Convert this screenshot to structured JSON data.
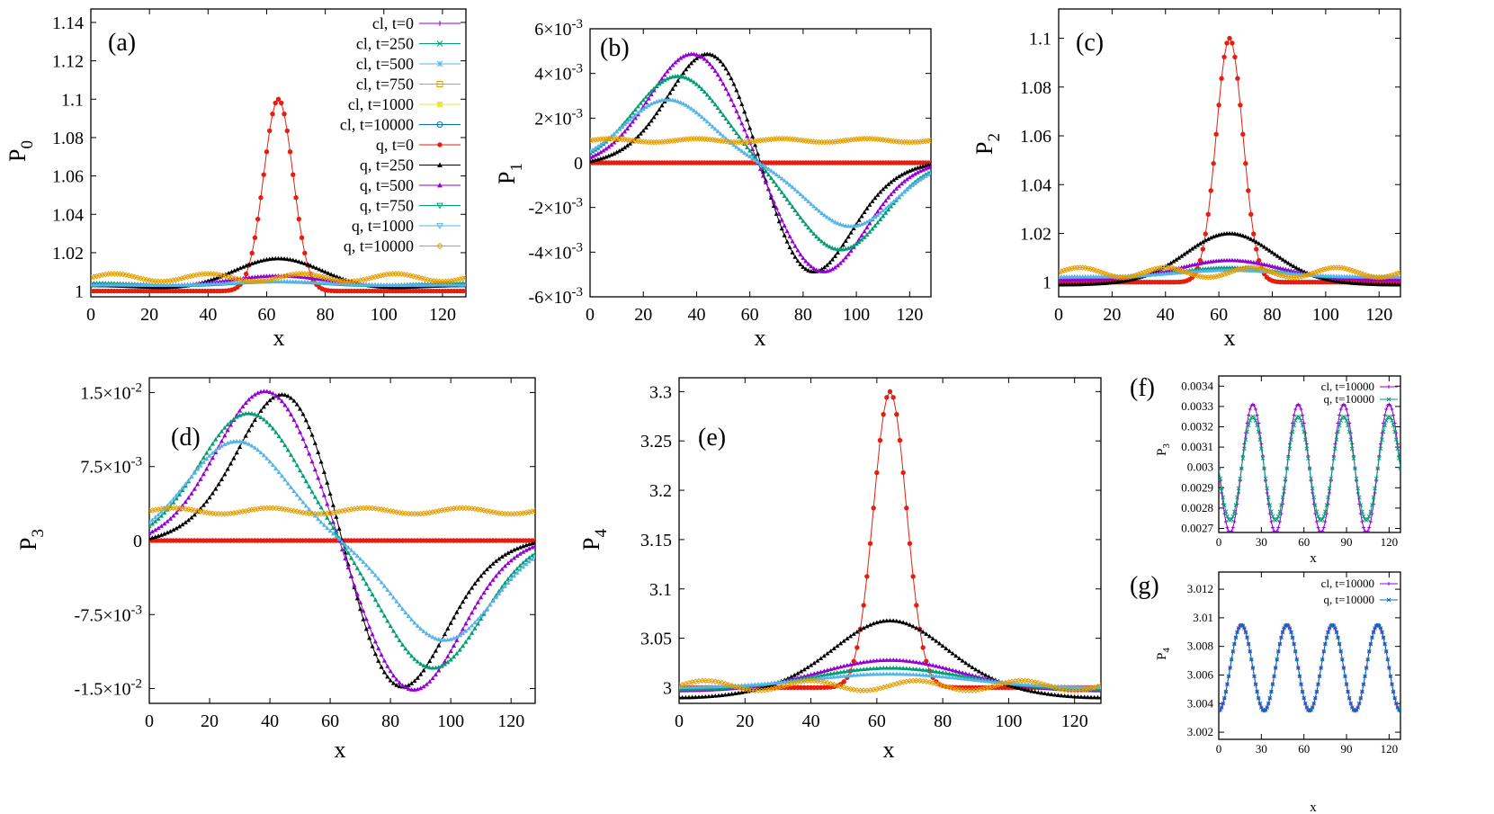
{
  "figure": {
    "colors": {
      "cl_t0": "#9400d3",
      "cl_t250": "#009e73",
      "cl_t500": "#56b4e9",
      "cl_t750": "#e69f00",
      "cl_t1000": "#f0e442",
      "cl_t10000": "#0072b2",
      "q_t0": "#e51e10",
      "q_t250": "#000000",
      "q_t500": "#9400d3",
      "q_t750": "#009e73",
      "q_t1000": "#56b4e9",
      "q_t10000": "#e69f00"
    }
  },
  "chart_data": [
    {
      "id": "a",
      "panel_label": "(a)",
      "type": "line",
      "xlabel": "x",
      "ylabel": "P",
      "ylabel_sub": "0",
      "xlim": [
        0,
        128
      ],
      "ylim": [
        0.997,
        1.147
      ],
      "xticks": [
        "0",
        "20",
        "40",
        "60",
        "80",
        "100",
        "120"
      ],
      "yticks": [
        {
          "v": 1,
          "t": "1"
        },
        {
          "v": 1.02,
          "t": "1.02"
        },
        {
          "v": 1.04,
          "t": "1.04"
        },
        {
          "v": 1.06,
          "t": "1.06"
        },
        {
          "v": 1.08,
          "t": "1.08"
        },
        {
          "v": 1.1,
          "t": "1.1"
        },
        {
          "v": 1.12,
          "t": "1.12"
        },
        {
          "v": 1.14,
          "t": "1.14"
        }
      ],
      "legend": [
        "cl, t=0",
        "cl, t=250",
        "cl, t=500",
        "cl, t=750",
        "cl, t=1000",
        "cl, t=10000",
        "q, t=0",
        "q, t=250",
        "q, t=500",
        "q, t=750",
        "q, t=1000",
        "q, t=10000"
      ],
      "legend_position": "top-right",
      "base": 1.0,
      "series": [
        {
          "name": "q, t=0",
          "kind": "gauss",
          "amp": 0.1,
          "width": 5,
          "color": "#e51e10",
          "marker": "dot"
        },
        {
          "name": "q, t=250",
          "kind": "gauss",
          "amp": 0.02,
          "width": 16,
          "offset": 0.003,
          "color": "#000000",
          "marker": "tri"
        },
        {
          "name": "q, t=500",
          "kind": "gauss",
          "amp": 0.012,
          "width": 20,
          "offset": 0.004,
          "color": "#9400d3",
          "marker": "tri"
        },
        {
          "name": "q, t=750",
          "kind": "gauss",
          "amp": 0.009,
          "width": 22,
          "offset": 0.004,
          "color": "#009e73",
          "marker": "tri"
        },
        {
          "name": "q, t=1000",
          "kind": "gauss",
          "amp": 0.008,
          "width": 24,
          "offset": 0.003,
          "color": "#56b4e9",
          "marker": "tri"
        },
        {
          "name": "q, t=10000",
          "kind": "wave",
          "mean": 1.007,
          "amp": 0.002,
          "period": 32,
          "color": "#e69f00",
          "marker": "dia"
        }
      ]
    },
    {
      "id": "b",
      "panel_label": "(b)",
      "type": "line",
      "xlabel": "x",
      "ylabel": "P",
      "ylabel_sub": "1",
      "xlim": [
        0,
        128
      ],
      "ylim": [
        -0.006,
        0.006
      ],
      "xticks": [
        "0",
        "20",
        "40",
        "60",
        "80",
        "100",
        "120"
      ],
      "yticks": [
        {
          "v": -0.006,
          "m": "-6",
          "e": "-3"
        },
        {
          "v": -0.004,
          "m": "-4",
          "e": "-3"
        },
        {
          "v": -0.002,
          "m": "-2",
          "e": "-3"
        },
        {
          "v": 0,
          "t": "0"
        },
        {
          "v": 0.002,
          "m": "2",
          "e": "-3"
        },
        {
          "v": 0.004,
          "m": "4",
          "e": "-3"
        },
        {
          "v": 0.006,
          "m": "6",
          "e": "-3"
        }
      ],
      "series": [
        {
          "name": "q, t=0",
          "kind": "flat",
          "value": 0,
          "color": "#e51e10",
          "marker": "dot"
        },
        {
          "name": "q, t=250",
          "kind": "antisym",
          "amp": 0.0051,
          "peak": 47,
          "trough": 81,
          "color": "#000000",
          "marker": "tri"
        },
        {
          "name": "q, t=500",
          "kind": "antisym",
          "amp": 0.0047,
          "peak": 39,
          "trough": 87,
          "color": "#9400d3",
          "marker": "tri"
        },
        {
          "name": "q, t=750",
          "kind": "antisym",
          "amp": 0.0037,
          "peak": 33,
          "trough": 94,
          "color": "#009e73",
          "marker": "tri"
        },
        {
          "name": "q, t=1000",
          "kind": "antisym",
          "amp": 0.0027,
          "peak": 29,
          "trough": 98,
          "color": "#56b4e9",
          "marker": "tri"
        },
        {
          "name": "q, t=10000",
          "kind": "wave",
          "mean": 0.001,
          "amp": 8e-05,
          "period": 32,
          "color": "#e69f00",
          "marker": "dia"
        }
      ]
    },
    {
      "id": "c",
      "panel_label": "(c)",
      "type": "line",
      "xlabel": "x",
      "ylabel": "P",
      "ylabel_sub": "2",
      "xlim": [
        0,
        128
      ],
      "ylim": [
        0.994,
        1.112
      ],
      "xticks": [
        "0",
        "20",
        "40",
        "60",
        "80",
        "100",
        "120"
      ],
      "yticks": [
        {
          "v": 1,
          "t": "1"
        },
        {
          "v": 1.02,
          "t": "1.02"
        },
        {
          "v": 1.04,
          "t": "1.04"
        },
        {
          "v": 1.06,
          "t": "1.06"
        },
        {
          "v": 1.08,
          "t": "1.08"
        },
        {
          "v": 1.1,
          "t": "1.1"
        }
      ],
      "base": 1.0,
      "series": [
        {
          "name": "q, t=0",
          "kind": "gauss",
          "amp": 0.1,
          "width": 5,
          "color": "#e51e10",
          "marker": "dot"
        },
        {
          "name": "q, t=250",
          "kind": "gauss",
          "amp": 0.019,
          "width": 16,
          "offset": -0.001,
          "color": "#000000",
          "marker": "tri"
        },
        {
          "name": "q, t=500",
          "kind": "gauss",
          "amp": 0.01,
          "width": 20,
          "offset": 0.001,
          "color": "#9400d3",
          "marker": "tri"
        },
        {
          "name": "q, t=750",
          "kind": "gauss",
          "amp": 0.008,
          "width": 22,
          "offset": 0.002,
          "color": "#009e73",
          "marker": "tri"
        },
        {
          "name": "q, t=1000",
          "kind": "gauss",
          "amp": 0.007,
          "width": 24,
          "offset": 0.002,
          "color": "#56b4e9",
          "marker": "tri"
        },
        {
          "name": "q, t=10000",
          "kind": "wave",
          "mean": 1.004,
          "amp": 0.002,
          "period": 32,
          "color": "#e69f00",
          "marker": "dia"
        }
      ]
    },
    {
      "id": "d",
      "panel_label": "(d)",
      "type": "line",
      "xlabel": "x",
      "ylabel": "P",
      "ylabel_sub": "3",
      "xlim": [
        0,
        128
      ],
      "ylim": [
        -0.0165,
        0.0165
      ],
      "xticks": [
        "0",
        "20",
        "40",
        "60",
        "80",
        "100",
        "120"
      ],
      "yticks": [
        {
          "v": -0.015,
          "m": "-1.5",
          "e": "-2"
        },
        {
          "v": -0.0075,
          "m": "-7.5",
          "e": "-3"
        },
        {
          "v": 0,
          "t": "0"
        },
        {
          "v": 0.0075,
          "m": "7.5",
          "e": "-3"
        },
        {
          "v": 0.015,
          "m": "1.5",
          "e": "-2"
        }
      ],
      "series": [
        {
          "name": "q, t=0",
          "kind": "flat",
          "value": 0,
          "color": "#e51e10",
          "marker": "dot"
        },
        {
          "name": "q, t=250",
          "kind": "antisym",
          "amp": 0.0155,
          "peak": 47,
          "trough": 81,
          "color": "#000000",
          "marker": "tri"
        },
        {
          "name": "q, t=500",
          "kind": "antisym",
          "amp": 0.0146,
          "peak": 39,
          "trough": 87,
          "color": "#9400d3",
          "marker": "tri"
        },
        {
          "name": "q, t=750",
          "kind": "antisym",
          "amp": 0.0123,
          "peak": 33,
          "trough": 94,
          "color": "#009e73",
          "marker": "tri"
        },
        {
          "name": "q, t=1000",
          "kind": "antisym",
          "amp": 0.0096,
          "peak": 29,
          "trough": 98,
          "color": "#56b4e9",
          "marker": "tri"
        },
        {
          "name": "q, t=10000",
          "kind": "wave",
          "mean": 0.003,
          "amp": 0.0003,
          "period": 32,
          "color": "#e69f00",
          "marker": "dia"
        }
      ]
    },
    {
      "id": "e",
      "panel_label": "(e)",
      "type": "line",
      "xlabel": "x",
      "ylabel": "P",
      "ylabel_sub": "4",
      "xlim": [
        0,
        128
      ],
      "ylim": [
        2.984,
        3.314
      ],
      "xticks": [
        "0",
        "20",
        "40",
        "60",
        "80",
        "100",
        "120"
      ],
      "yticks": [
        {
          "v": 3,
          "t": "3"
        },
        {
          "v": 3.05,
          "t": "3.05"
        },
        {
          "v": 3.1,
          "t": "3.1"
        },
        {
          "v": 3.15,
          "t": "3.15"
        },
        {
          "v": 3.2,
          "t": "3.2"
        },
        {
          "v": 3.25,
          "t": "3.25"
        },
        {
          "v": 3.3,
          "t": "3.3"
        }
      ],
      "base": 3.0,
      "series": [
        {
          "name": "q, t=0",
          "kind": "gauss",
          "amp": 0.3,
          "width": 5,
          "color": "#e51e10",
          "marker": "dot"
        },
        {
          "name": "q, t=250",
          "kind": "gauss",
          "amp": 0.058,
          "width": 16,
          "offset": -0.01,
          "color": "#000000",
          "marker": "tri"
        },
        {
          "name": "q, t=500",
          "kind": "gauss",
          "amp": 0.025,
          "width": 20,
          "offset": -0.003,
          "color": "#9400d3",
          "marker": "tri"
        },
        {
          "name": "q, t=750",
          "kind": "gauss",
          "amp": 0.018,
          "width": 22,
          "offset": -0.002,
          "color": "#009e73",
          "marker": "tri"
        },
        {
          "name": "q, t=1000",
          "kind": "gauss",
          "amp": 0.014,
          "width": 24,
          "offset": 0,
          "color": "#56b4e9",
          "marker": "tri"
        },
        {
          "name": "q, t=10000",
          "kind": "wave",
          "mean": 3.002,
          "amp": 0.005,
          "period": 32,
          "color": "#e69f00",
          "marker": "dia"
        }
      ]
    },
    {
      "id": "f",
      "panel_label": "(f)",
      "type": "line",
      "small": true,
      "xlabel": "x",
      "ylabel": "P",
      "ylabel_sub": "3",
      "xlim": [
        0,
        128
      ],
      "ylim": [
        0.00268,
        0.00345
      ],
      "xticks": [
        "0",
        "30",
        "60",
        "90",
        "120"
      ],
      "xtick_vals": [
        0,
        30,
        60,
        90,
        120
      ],
      "yticks": [
        {
          "v": 0.0027,
          "t": "0.0027"
        },
        {
          "v": 0.0028,
          "t": "0.0028"
        },
        {
          "v": 0.0029,
          "t": "0.0029"
        },
        {
          "v": 0.003,
          "t": "0.003"
        },
        {
          "v": 0.0031,
          "t": "0.0031"
        },
        {
          "v": 0.0032,
          "t": "0.0032"
        },
        {
          "v": 0.0033,
          "t": "0.0033"
        },
        {
          "v": 0.0034,
          "t": "0.0034"
        }
      ],
      "legend": [
        "cl, t=10000",
        "q, t=10000"
      ],
      "legend_position": "top-right",
      "series": [
        {
          "name": "cl, t=10000",
          "kind": "cos",
          "mean": 0.002995,
          "amp": 0.000315,
          "period": 32,
          "phase": 24,
          "color": "#9400d3",
          "marker": "plus"
        },
        {
          "name": "q, t=10000",
          "kind": "cos",
          "mean": 0.002995,
          "amp": 0.000255,
          "period": 32,
          "phase": 24,
          "color": "#009e73",
          "marker": "x"
        }
      ]
    },
    {
      "id": "g",
      "panel_label": "(g)",
      "type": "line",
      "small": true,
      "xlabel": "x",
      "ylabel": "P",
      "ylabel_sub": "4",
      "xlim": [
        0,
        128
      ],
      "ylim": [
        3.0015,
        3.0132
      ],
      "xticks": [
        "0",
        "30",
        "60",
        "90",
        "120"
      ],
      "xtick_vals": [
        0,
        30,
        60,
        90,
        120
      ],
      "yticks": [
        {
          "v": 3.002,
          "t": "3.002"
        },
        {
          "v": 3.004,
          "t": "3.004"
        },
        {
          "v": 3.006,
          "t": "3.006"
        },
        {
          "v": 3.008,
          "t": "3.008"
        },
        {
          "v": 3.01,
          "t": "3.01"
        },
        {
          "v": 3.012,
          "t": "3.012"
        }
      ],
      "legend": [
        "cl, t=10000",
        "q, t=10000"
      ],
      "legend_position": "top-right",
      "series": [
        {
          "name": "cl, t=10000",
          "kind": "cos",
          "mean": 3.0065,
          "amp": 0.003,
          "period": 32,
          "phase": 16,
          "color": "#9400d3",
          "marker": "plus"
        },
        {
          "name": "q, t=10000",
          "kind": "cos",
          "mean": 3.0065,
          "amp": 0.003,
          "period": 32,
          "phase": 16,
          "color": "#0072b2",
          "marker": "x"
        }
      ]
    }
  ]
}
